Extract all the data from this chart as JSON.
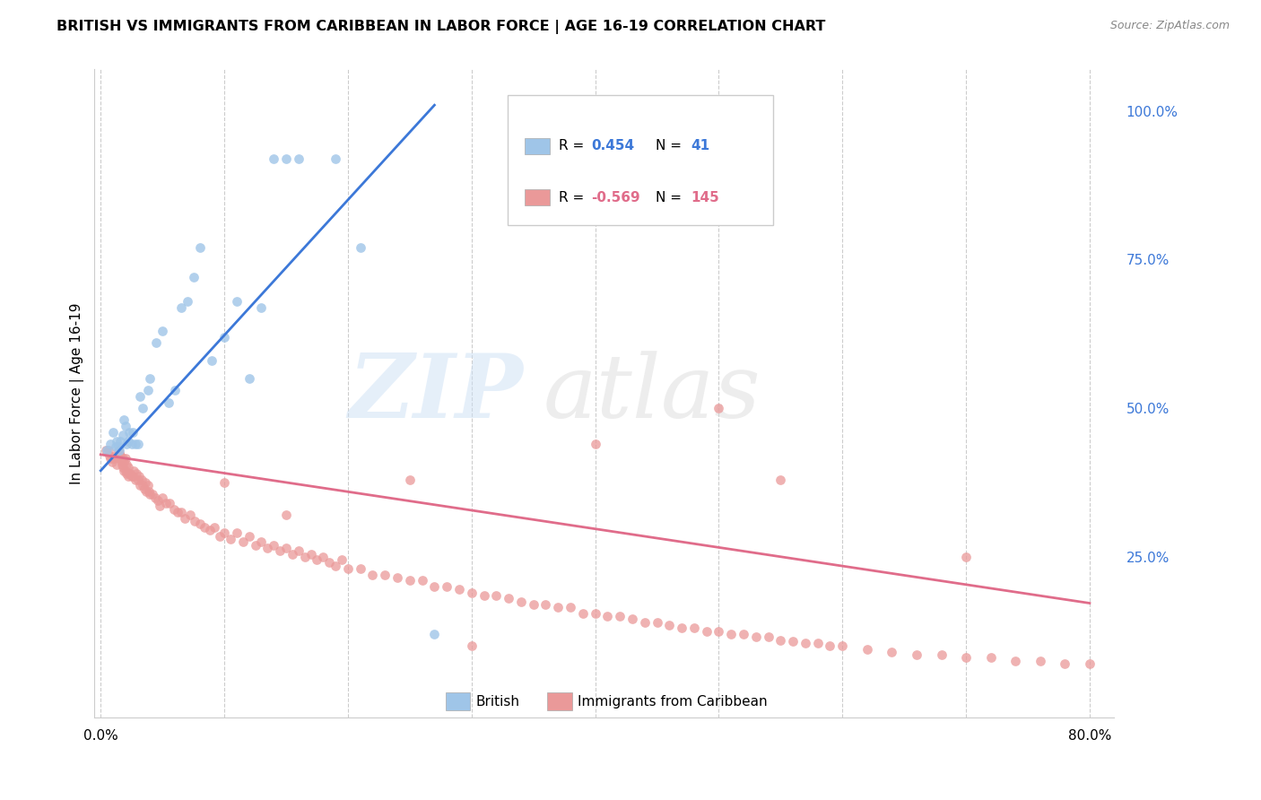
{
  "title": "BRITISH VS IMMIGRANTS FROM CARIBBEAN IN LABOR FORCE | AGE 16-19 CORRELATION CHART",
  "source": "Source: ZipAtlas.com",
  "ylabel": "In Labor Force | Age 16-19",
  "x_min": 0.0,
  "x_max": 0.8,
  "y_min": 0.0,
  "y_max": 1.05,
  "x_tick_positions": [
    0.0,
    0.1,
    0.2,
    0.3,
    0.4,
    0.5,
    0.6,
    0.7,
    0.8
  ],
  "x_tick_labels": [
    "0.0%",
    "",
    "",
    "",
    "",
    "",
    "",
    "",
    "80.0%"
  ],
  "y_ticks_right": [
    1.0,
    0.75,
    0.5,
    0.25
  ],
  "y_tick_labels_right": [
    "100.0%",
    "75.0%",
    "50.0%",
    "25.0%"
  ],
  "british_R": 0.454,
  "british_N": 41,
  "caribbean_R": -0.569,
  "caribbean_N": 145,
  "british_color": "#9fc5e8",
  "caribbean_color": "#ea9999",
  "british_line_color": "#3c78d8",
  "caribbean_line_color": "#e06c8a",
  "watermark_zip": "ZIP",
  "watermark_atlas": "atlas",
  "british_x": [
    0.005,
    0.008,
    0.01,
    0.012,
    0.013,
    0.014,
    0.015,
    0.016,
    0.018,
    0.019,
    0.02,
    0.021,
    0.022,
    0.023,
    0.025,
    0.026,
    0.028,
    0.03,
    0.032,
    0.034,
    0.038,
    0.04,
    0.045,
    0.05,
    0.055,
    0.06,
    0.065,
    0.07,
    0.075,
    0.08,
    0.09,
    0.1,
    0.11,
    0.12,
    0.13,
    0.14,
    0.15,
    0.16,
    0.19,
    0.21,
    0.27
  ],
  "british_y": [
    0.43,
    0.44,
    0.46,
    0.435,
    0.445,
    0.435,
    0.43,
    0.445,
    0.455,
    0.48,
    0.47,
    0.44,
    0.445,
    0.46,
    0.44,
    0.46,
    0.44,
    0.44,
    0.52,
    0.5,
    0.53,
    0.55,
    0.61,
    0.63,
    0.51,
    0.53,
    0.67,
    0.68,
    0.72,
    0.77,
    0.58,
    0.62,
    0.68,
    0.55,
    0.67,
    0.92,
    0.92,
    0.92,
    0.92,
    0.77,
    0.12
  ],
  "caribbean_x": [
    0.004,
    0.006,
    0.007,
    0.008,
    0.009,
    0.01,
    0.011,
    0.012,
    0.013,
    0.014,
    0.014,
    0.015,
    0.015,
    0.016,
    0.016,
    0.017,
    0.017,
    0.018,
    0.018,
    0.019,
    0.019,
    0.02,
    0.02,
    0.021,
    0.021,
    0.022,
    0.022,
    0.023,
    0.024,
    0.025,
    0.026,
    0.027,
    0.028,
    0.029,
    0.03,
    0.031,
    0.032,
    0.033,
    0.034,
    0.035,
    0.036,
    0.037,
    0.038,
    0.039,
    0.04,
    0.042,
    0.044,
    0.046,
    0.048,
    0.05,
    0.053,
    0.056,
    0.059,
    0.062,
    0.065,
    0.068,
    0.072,
    0.076,
    0.08,
    0.084,
    0.088,
    0.092,
    0.096,
    0.1,
    0.105,
    0.11,
    0.115,
    0.12,
    0.125,
    0.13,
    0.135,
    0.14,
    0.145,
    0.15,
    0.155,
    0.16,
    0.165,
    0.17,
    0.175,
    0.18,
    0.185,
    0.19,
    0.195,
    0.2,
    0.21,
    0.22,
    0.23,
    0.24,
    0.25,
    0.26,
    0.27,
    0.28,
    0.29,
    0.3,
    0.31,
    0.32,
    0.33,
    0.34,
    0.35,
    0.36,
    0.37,
    0.38,
    0.39,
    0.4,
    0.41,
    0.42,
    0.43,
    0.44,
    0.45,
    0.46,
    0.47,
    0.48,
    0.49,
    0.5,
    0.51,
    0.52,
    0.53,
    0.54,
    0.55,
    0.56,
    0.57,
    0.58,
    0.59,
    0.6,
    0.62,
    0.64,
    0.66,
    0.68,
    0.7,
    0.72,
    0.74,
    0.76,
    0.78,
    0.8,
    0.7,
    0.4,
    0.5,
    0.3,
    0.55,
    0.25,
    0.15,
    0.1
  ],
  "caribbean_y": [
    0.43,
    0.43,
    0.42,
    0.415,
    0.41,
    0.415,
    0.415,
    0.42,
    0.405,
    0.43,
    0.42,
    0.415,
    0.425,
    0.415,
    0.42,
    0.405,
    0.41,
    0.4,
    0.415,
    0.395,
    0.41,
    0.395,
    0.415,
    0.39,
    0.405,
    0.385,
    0.4,
    0.39,
    0.39,
    0.385,
    0.385,
    0.395,
    0.38,
    0.39,
    0.38,
    0.385,
    0.37,
    0.38,
    0.37,
    0.365,
    0.375,
    0.36,
    0.37,
    0.36,
    0.355,
    0.355,
    0.35,
    0.345,
    0.335,
    0.35,
    0.34,
    0.34,
    0.33,
    0.325,
    0.325,
    0.315,
    0.32,
    0.31,
    0.305,
    0.3,
    0.295,
    0.3,
    0.285,
    0.29,
    0.28,
    0.29,
    0.275,
    0.285,
    0.27,
    0.275,
    0.265,
    0.27,
    0.26,
    0.265,
    0.255,
    0.26,
    0.25,
    0.255,
    0.245,
    0.25,
    0.24,
    0.235,
    0.245,
    0.23,
    0.23,
    0.22,
    0.22,
    0.215,
    0.21,
    0.21,
    0.2,
    0.2,
    0.195,
    0.19,
    0.185,
    0.185,
    0.18,
    0.175,
    0.17,
    0.17,
    0.165,
    0.165,
    0.155,
    0.155,
    0.15,
    0.15,
    0.145,
    0.14,
    0.14,
    0.135,
    0.13,
    0.13,
    0.125,
    0.125,
    0.12,
    0.12,
    0.115,
    0.115,
    0.11,
    0.108,
    0.105,
    0.105,
    0.1,
    0.1,
    0.095,
    0.09,
    0.085,
    0.085,
    0.08,
    0.08,
    0.075,
    0.075,
    0.07,
    0.07,
    0.25,
    0.44,
    0.5,
    0.1,
    0.38,
    0.38,
    0.32,
    0.375
  ],
  "british_line_x": [
    0.0,
    0.27
  ],
  "british_line_y": [
    0.395,
    1.01
  ],
  "caribbean_line_x": [
    0.0,
    0.8
  ],
  "caribbean_line_y": [
    0.422,
    0.172
  ]
}
